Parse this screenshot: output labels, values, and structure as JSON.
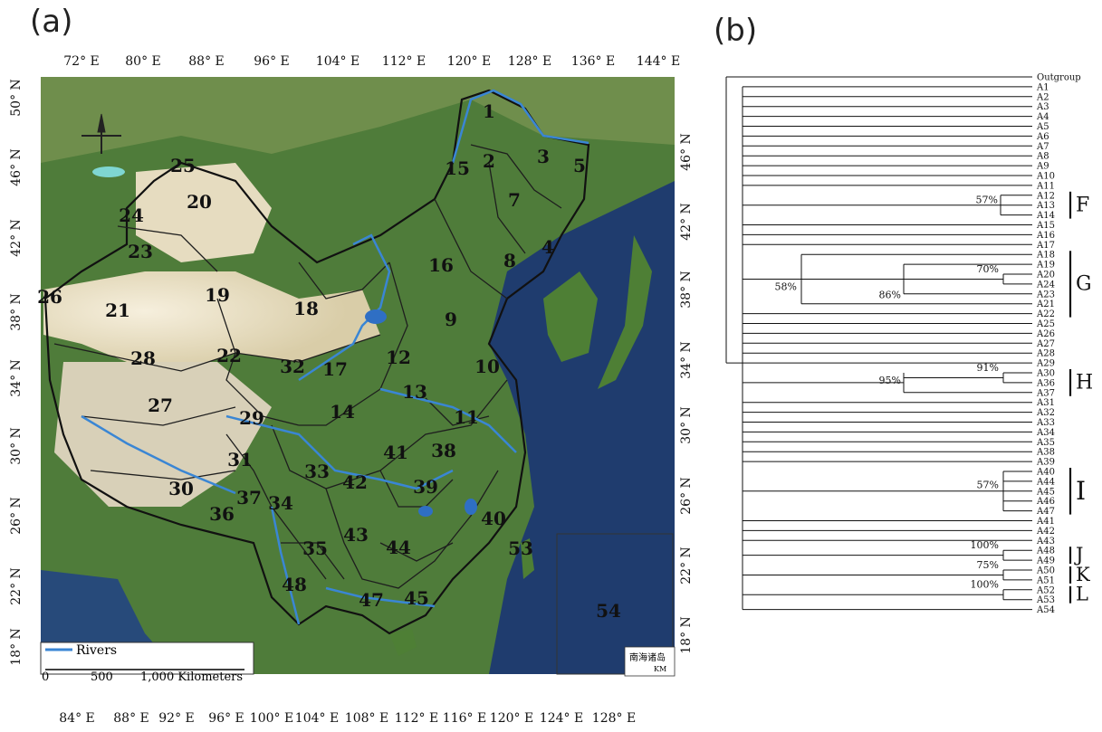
{
  "panel_a": {
    "label": "(a)",
    "top_lon_labels": [
      "72° E",
      "80° E",
      "88° E",
      "96° E",
      "104° E",
      "112° E",
      "120° E",
      "128° E",
      "136° E",
      "144° E"
    ],
    "bottom_lon_labels": [
      "84° E",
      "88° E",
      "92° E",
      "96° E",
      "100° E",
      "104° E",
      "108° E",
      "112° E",
      "116° E",
      "120° E",
      "124° E",
      "128° E"
    ],
    "left_lat_labels": [
      "50° N",
      "46° N",
      "42° N",
      "38° N",
      "34° N",
      "30° N",
      "26° N",
      "22° N",
      "18° N"
    ],
    "right_lat_labels": [
      "46° N",
      "42° N",
      "38° N",
      "34° N",
      "30° N",
      "26° N",
      "22° N",
      "18° N"
    ],
    "legend_rivers": "Rivers",
    "scale_labels": [
      "0",
      "500",
      "1,000 Kilometers"
    ],
    "inset_label": "南海诸岛",
    "inset_scale": "KM",
    "region_numbers": [
      "1",
      "2",
      "3",
      "4",
      "5",
      "7",
      "8",
      "9",
      "10",
      "11",
      "12",
      "13",
      "14",
      "15",
      "16",
      "17",
      "18",
      "19",
      "20",
      "21",
      "22",
      "23",
      "24",
      "25",
      "26",
      "27",
      "28",
      "29",
      "30",
      "31",
      "32",
      "33",
      "34",
      "35",
      "36",
      "37",
      "38",
      "39",
      "40",
      "41",
      "42",
      "43",
      "44",
      "45",
      "47",
      "48",
      "53",
      "54"
    ],
    "colors": {
      "sea": "#1f3c6e",
      "land": "#5f8a3a",
      "desert": "#f0e6cf",
      "river": "#3a86d4",
      "border": "#1e1e1e"
    }
  },
  "panel_b": {
    "label": "(b)",
    "taxa": [
      "Outgroup",
      "A1",
      "A2",
      "A3",
      "A4",
      "A5",
      "A6",
      "A7",
      "A8",
      "A9",
      "A10",
      "A11",
      "A12",
      "A13",
      "A14",
      "A15",
      "A16",
      "A17",
      "A18",
      "A19",
      "A20",
      "A24",
      "A23",
      "A21",
      "A22",
      "A25",
      "A26",
      "A27",
      "A28",
      "A29",
      "A30",
      "A36",
      "A37",
      "A31",
      "A32",
      "A33",
      "A34",
      "A35",
      "A38",
      "A39",
      "A40",
      "A44",
      "A45",
      "A46",
      "A47",
      "A41",
      "A42",
      "A43",
      "A48",
      "A49",
      "A50",
      "A51",
      "A52",
      "A53",
      "A54"
    ],
    "support_values": [
      "57%",
      "58%",
      "86%",
      "70%",
      "95%",
      "91%",
      "57%",
      "100%",
      "75%",
      "100%"
    ],
    "clade_labels": [
      "F",
      "G",
      "H",
      "I",
      "J",
      "K",
      "L"
    ]
  }
}
